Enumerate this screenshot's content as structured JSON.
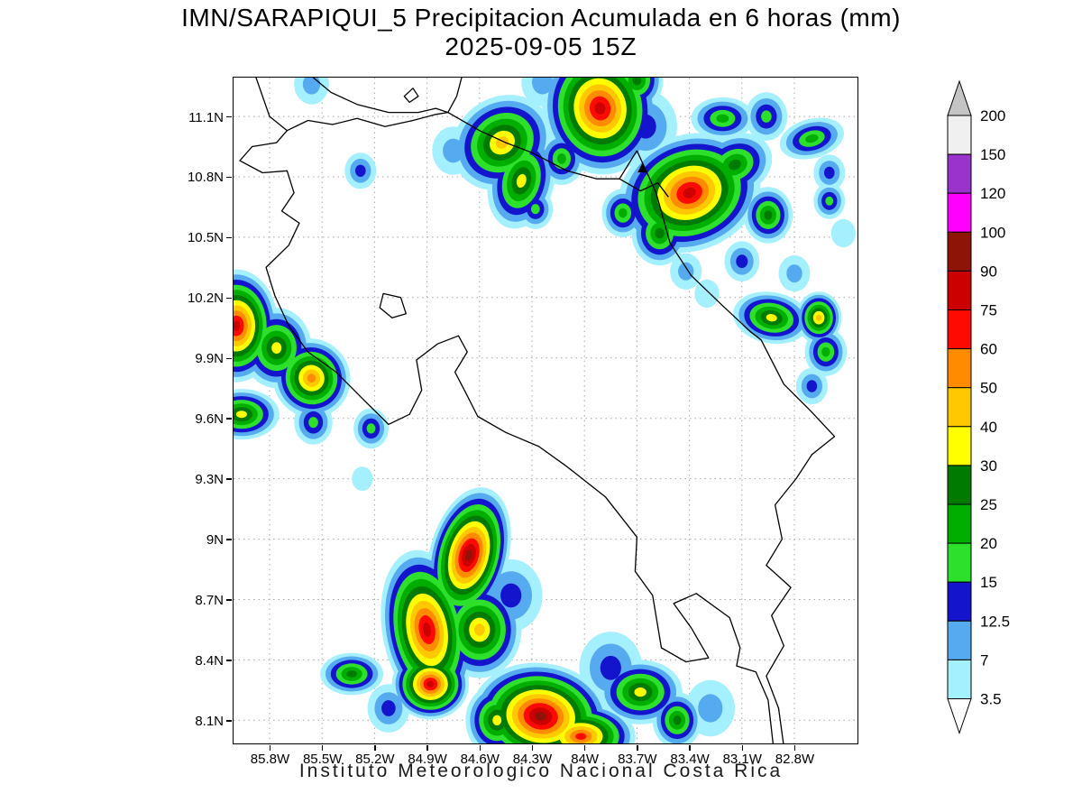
{
  "title": "IMN/SARAPIQUI_5 Precipitacion Acumulada en 6 horas (mm)",
  "subtitle": "2025-09-05 15Z",
  "footer": "Instituto Meteorologico Nacional Costa Rica",
  "map": {
    "lon_range": [
      -86.006,
      -82.439
    ],
    "lat_range": [
      7.985,
      11.293
    ],
    "grid_color": "#a8a8a8",
    "x_ticks": [
      {
        "label": "85.8W",
        "lon": -85.8
      },
      {
        "label": "85.5W",
        "lon": -85.5
      },
      {
        "label": "85.2W",
        "lon": -85.2
      },
      {
        "label": "84.9W",
        "lon": -84.9
      },
      {
        "label": "84.6W",
        "lon": -84.6
      },
      {
        "label": "84.3W",
        "lon": -84.3
      },
      {
        "label": "84W",
        "lon": -84.0
      },
      {
        "label": "83.7W",
        "lon": -83.7
      },
      {
        "label": "83.4W",
        "lon": -83.4
      },
      {
        "label": "83.1W",
        "lon": -83.1
      },
      {
        "label": "82.8W",
        "lon": -82.8
      }
    ],
    "y_ticks": [
      {
        "label": "11.1N",
        "lat": 11.1
      },
      {
        "label": "10.8N",
        "lat": 10.8
      },
      {
        "label": "10.5N",
        "lat": 10.5
      },
      {
        "label": "10.2N",
        "lat": 10.2
      },
      {
        "label": "9.9N",
        "lat": 9.9
      },
      {
        "label": "9.6N",
        "lat": 9.6
      },
      {
        "label": "9.3N",
        "lat": 9.3
      },
      {
        "label": "9N",
        "lat": 9.0
      },
      {
        "label": "8.7N",
        "lat": 8.7
      },
      {
        "label": "8.4N",
        "lat": 8.4
      },
      {
        "label": "8.1N",
        "lat": 8.1
      }
    ]
  },
  "colorbar": {
    "levels_top_to_bottom": [
      "200",
      "150",
      "120",
      "100",
      "90",
      "75",
      "60",
      "50",
      "40",
      "30",
      "25",
      "20",
      "15",
      "12.5",
      "7",
      "3.5"
    ],
    "above_max_color": "#c4c4c4",
    "below_min_color": "#ffffff"
  },
  "chart_data": {
    "type": "heatmap",
    "title": "Precipitacion Acumulada en 6 horas",
    "units": "mm",
    "source_label": "IMN/SARAPIQUI_5",
    "valid_time": "2025-09-05 15Z",
    "thresholds_mm": [
      3.5,
      7,
      12.5,
      15,
      20,
      25,
      30,
      40,
      50,
      60,
      75,
      90,
      100,
      120,
      150,
      200
    ],
    "threshold_colors": [
      "#a5f0ff",
      "#55aaf0",
      "#1414cd",
      "#2ce02c",
      "#00ae00",
      "#007a00",
      "#ffff00",
      "#ffc800",
      "#ff8c00",
      "#ff0a00",
      "#cc0000",
      "#8e1407",
      "#ff00ff",
      "#9933cc",
      "#f0f0f0",
      "#c4c4c4"
    ],
    "cells": [
      {
        "lon": -85.56,
        "lat": 11.26,
        "max": 7,
        "r": 0.1
      },
      {
        "lon": -85.28,
        "lat": 10.83,
        "max": 12.5,
        "r": 0.09
      },
      {
        "lon": -84.47,
        "lat": 10.97,
        "max": 40,
        "r": 0.3,
        "sx": 1.0,
        "sy": 0.75,
        "rot": -35
      },
      {
        "lon": -84.36,
        "lat": 10.78,
        "max": 30,
        "r": 0.22,
        "sx": 0.85,
        "sy": 1.1,
        "rot": 15
      },
      {
        "lon": -84.28,
        "lat": 10.64,
        "max": 15,
        "r": 0.1
      },
      {
        "lon": -84.75,
        "lat": 10.93,
        "max": 7,
        "r": 0.12
      },
      {
        "lon": -84.24,
        "lat": 11.27,
        "max": 7,
        "r": 0.12
      },
      {
        "lon": -83.91,
        "lat": 11.14,
        "max": 75,
        "r": 0.33,
        "rot": -10
      },
      {
        "lon": -84.13,
        "lat": 10.89,
        "max": 20,
        "r": 0.13
      },
      {
        "lon": -83.7,
        "lat": 11.28,
        "max": 25,
        "r": 0.15
      },
      {
        "lon": -83.4,
        "lat": 10.72,
        "max": 85,
        "r": 0.36,
        "sx": 1.15,
        "sy": 0.8,
        "rot": -20
      },
      {
        "lon": -83.14,
        "lat": 10.86,
        "max": 25,
        "r": 0.2,
        "sx": 1.1,
        "sy": 0.75,
        "rot": -25
      },
      {
        "lon": -83.57,
        "lat": 10.52,
        "max": 25,
        "r": 0.16
      },
      {
        "lon": -83.65,
        "lat": 11.05,
        "max": 12.5,
        "r": 0.18
      },
      {
        "lon": -83.21,
        "lat": 11.09,
        "max": 20,
        "r": 0.15,
        "sx": 1.2,
        "sy": 0.7
      },
      {
        "lon": -83.78,
        "lat": 10.62,
        "max": 20,
        "r": 0.12
      },
      {
        "lon": -82.96,
        "lat": 11.1,
        "max": 15,
        "r": 0.12
      },
      {
        "lon": -82.7,
        "lat": 10.99,
        "max": 20,
        "r": 0.15,
        "sx": 1.25,
        "sy": 0.65,
        "rot": -15
      },
      {
        "lon": -82.6,
        "lat": 10.82,
        "max": 12.5,
        "r": 0.09
      },
      {
        "lon": -82.95,
        "lat": 10.61,
        "max": 25,
        "r": 0.14
      },
      {
        "lon": -82.6,
        "lat": 10.68,
        "max": 15,
        "r": 0.09
      },
      {
        "lon": -82.52,
        "lat": 10.52,
        "max": 3.5,
        "r": 0.07
      },
      {
        "lon": -83.1,
        "lat": 10.38,
        "max": 12.5,
        "r": 0.1
      },
      {
        "lon": -82.8,
        "lat": 10.32,
        "max": 7,
        "r": 0.09
      },
      {
        "lon": -83.42,
        "lat": 10.33,
        "max": 7,
        "r": 0.09
      },
      {
        "lon": -83.3,
        "lat": 10.22,
        "max": 3.5,
        "r": 0.07
      },
      {
        "lon": -82.93,
        "lat": 10.1,
        "max": 30,
        "r": 0.17,
        "sx": 1.3,
        "sy": 0.75,
        "rot": 10
      },
      {
        "lon": -82.66,
        "lat": 10.1,
        "max": 40,
        "r": 0.13
      },
      {
        "lon": -82.62,
        "lat": 9.93,
        "max": 20,
        "r": 0.12
      },
      {
        "lon": -82.7,
        "lat": 9.76,
        "max": 12.5,
        "r": 0.09
      },
      {
        "lon": -85.99,
        "lat": 10.06,
        "max": 75,
        "r": 0.28,
        "sx": 0.85
      },
      {
        "lon": -85.76,
        "lat": 9.95,
        "max": 30,
        "r": 0.2
      },
      {
        "lon": -85.56,
        "lat": 9.8,
        "max": 50,
        "r": 0.22,
        "sy": 0.9,
        "rot": -30
      },
      {
        "lon": -85.96,
        "lat": 9.62,
        "max": 30,
        "r": 0.18,
        "sx": 1.2,
        "sy": 0.7
      },
      {
        "lon": -85.55,
        "lat": 9.58,
        "max": 15,
        "r": 0.11
      },
      {
        "lon": -85.22,
        "lat": 9.55,
        "max": 15,
        "r": 0.1
      },
      {
        "lon": -85.27,
        "lat": 9.3,
        "max": 3.5,
        "r": 0.06
      },
      {
        "lon": -84.66,
        "lat": 8.92,
        "max": 90,
        "r": 0.3,
        "sx": 0.75,
        "sy": 1.15,
        "rot": 15
      },
      {
        "lon": -84.9,
        "lat": 8.55,
        "max": 75,
        "r": 0.32,
        "sx": 0.8,
        "sy": 1.25,
        "rot": -10
      },
      {
        "lon": -84.88,
        "lat": 8.28,
        "max": 75,
        "r": 0.22,
        "sy": 0.8
      },
      {
        "lon": -84.6,
        "lat": 8.55,
        "max": 40,
        "r": 0.24
      },
      {
        "lon": -84.42,
        "lat": 8.72,
        "max": 12.5,
        "r": 0.18
      },
      {
        "lon": -85.33,
        "lat": 8.33,
        "max": 25,
        "r": 0.15,
        "sx": 1.2,
        "sy": 0.7
      },
      {
        "lon": -85.12,
        "lat": 8.16,
        "max": 12.5,
        "r": 0.12
      },
      {
        "lon": -84.25,
        "lat": 8.12,
        "max": 95,
        "r": 0.33,
        "sx": 1.2,
        "sy": 0.8,
        "rot": 8
      },
      {
        "lon": -84.5,
        "lat": 8.1,
        "max": 30,
        "r": 0.18
      },
      {
        "lon": -84.02,
        "lat": 8.02,
        "max": 60,
        "r": 0.24,
        "sx": 1.3,
        "sy": 0.7
      },
      {
        "lon": -83.68,
        "lat": 8.24,
        "max": 30,
        "r": 0.2,
        "sx": 1.2,
        "sy": 0.8
      },
      {
        "lon": -83.47,
        "lat": 8.1,
        "max": 25,
        "r": 0.14
      },
      {
        "lon": -83.85,
        "lat": 8.36,
        "max": 12.5,
        "r": 0.18
      },
      {
        "lon": -83.28,
        "lat": 8.16,
        "max": 7,
        "r": 0.14
      }
    ]
  }
}
